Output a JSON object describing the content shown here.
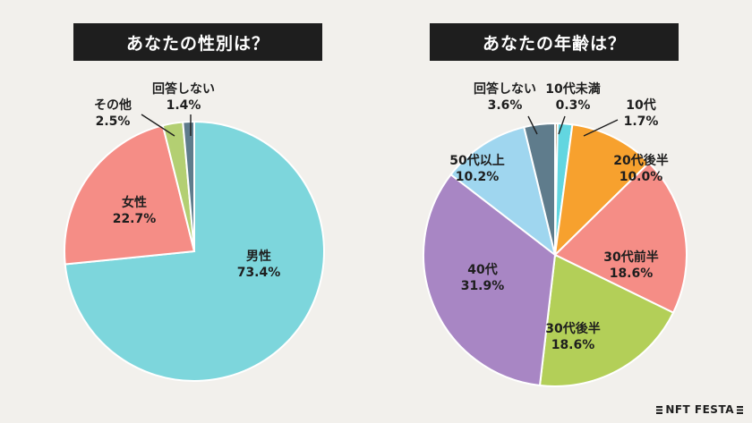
{
  "brand": {
    "name": "NFT FESTA"
  },
  "chart_data": [
    {
      "type": "pie",
      "title": "あなたの性別は？",
      "slices": [
        {
          "label": "男性",
          "value": 73.4,
          "value_text": "73.4%",
          "color": "#7dd6dc"
        },
        {
          "label": "女性",
          "value": 22.7,
          "value_text": "22.7%",
          "color": "#f58d86"
        },
        {
          "label": "その他",
          "value": 2.5,
          "value_text": "2.5%",
          "color": "#b3cf72"
        },
        {
          "label": "回答しない",
          "value": 1.4,
          "value_text": "1.4%",
          "color": "#5f7c8c"
        }
      ]
    },
    {
      "type": "pie",
      "title": "あなたの年齢は？",
      "slices": [
        {
          "label": "10代未満",
          "value": 0.3,
          "value_text": "0.3%",
          "color": "#a98863"
        },
        {
          "label": "10代",
          "value": 1.7,
          "value_text": "1.7%",
          "color": "#62d6e0"
        },
        {
          "label": "20代後半",
          "value": 10.0,
          "value_text": "10.0%",
          "color": "#f7a12e"
        },
        {
          "label": "30代前半",
          "value": 18.6,
          "value_text": "18.6%",
          "color": "#f58d86"
        },
        {
          "label": "30代後半",
          "value": 18.6,
          "value_text": "18.6%",
          "color": "#b3cf58"
        },
        {
          "label": "40代",
          "value": 31.9,
          "value_text": "31.9%",
          "color": "#a886c4"
        },
        {
          "label": "50代以上",
          "value": 10.2,
          "value_text": "10.2%",
          "color": "#9fd6ef"
        },
        {
          "label": "回答しない",
          "value": 3.6,
          "value_text": "3.6%",
          "color": "#5f7c8c"
        }
      ]
    }
  ]
}
